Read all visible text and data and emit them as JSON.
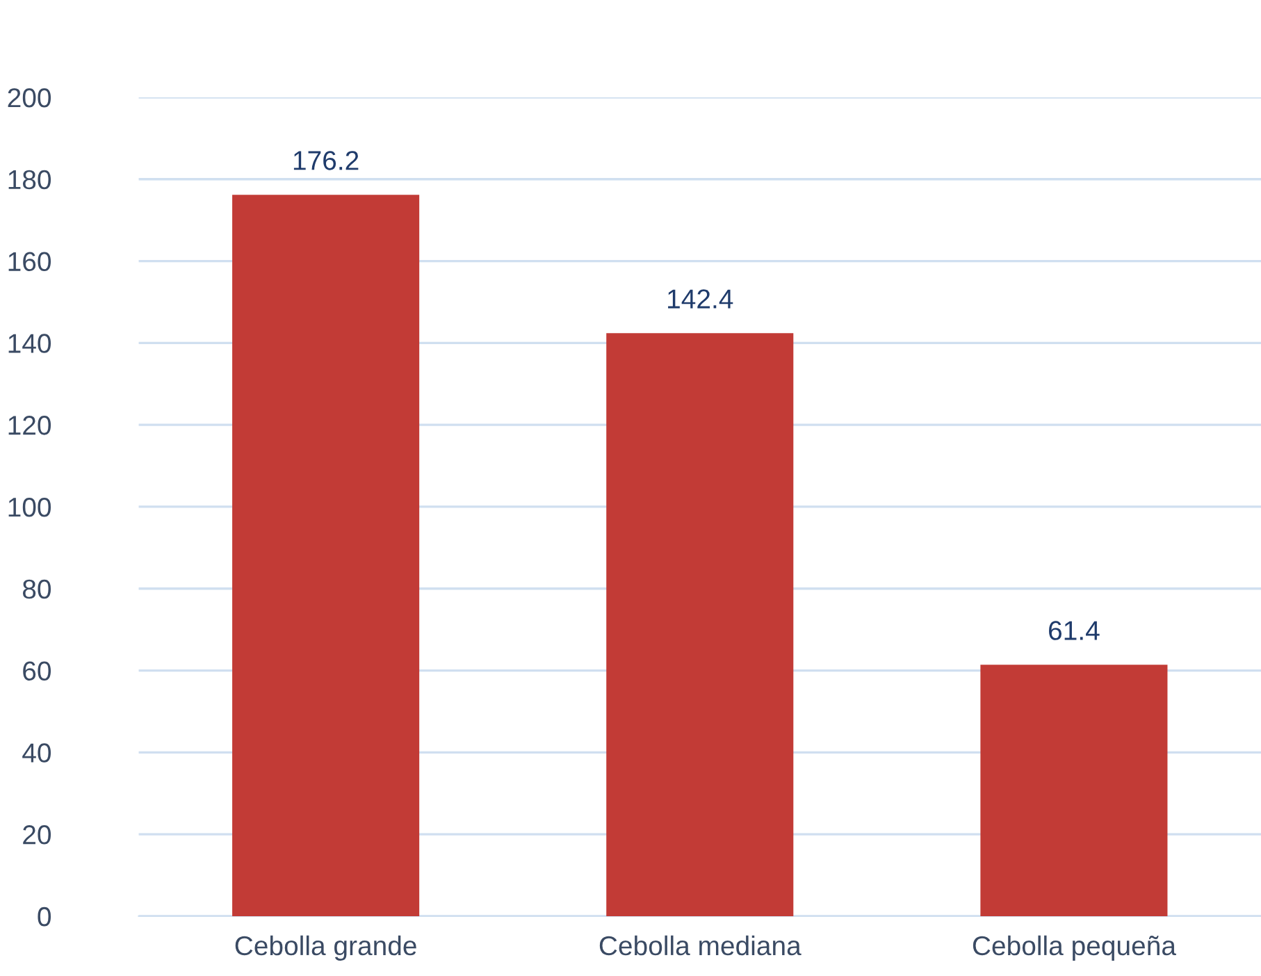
{
  "chart_data": {
    "type": "bar",
    "categories": [
      "Cebolla grande",
      "Cebolla mediana",
      "Cebolla pequeña"
    ],
    "values": [
      176.2,
      142.4,
      61.4
    ],
    "color": "#c23b36",
    "ylim": [
      0,
      200
    ],
    "yticks": [
      0,
      20,
      40,
      60,
      80,
      100,
      120,
      140,
      160,
      180,
      200
    ],
    "grid": "y",
    "data_labels": true
  }
}
